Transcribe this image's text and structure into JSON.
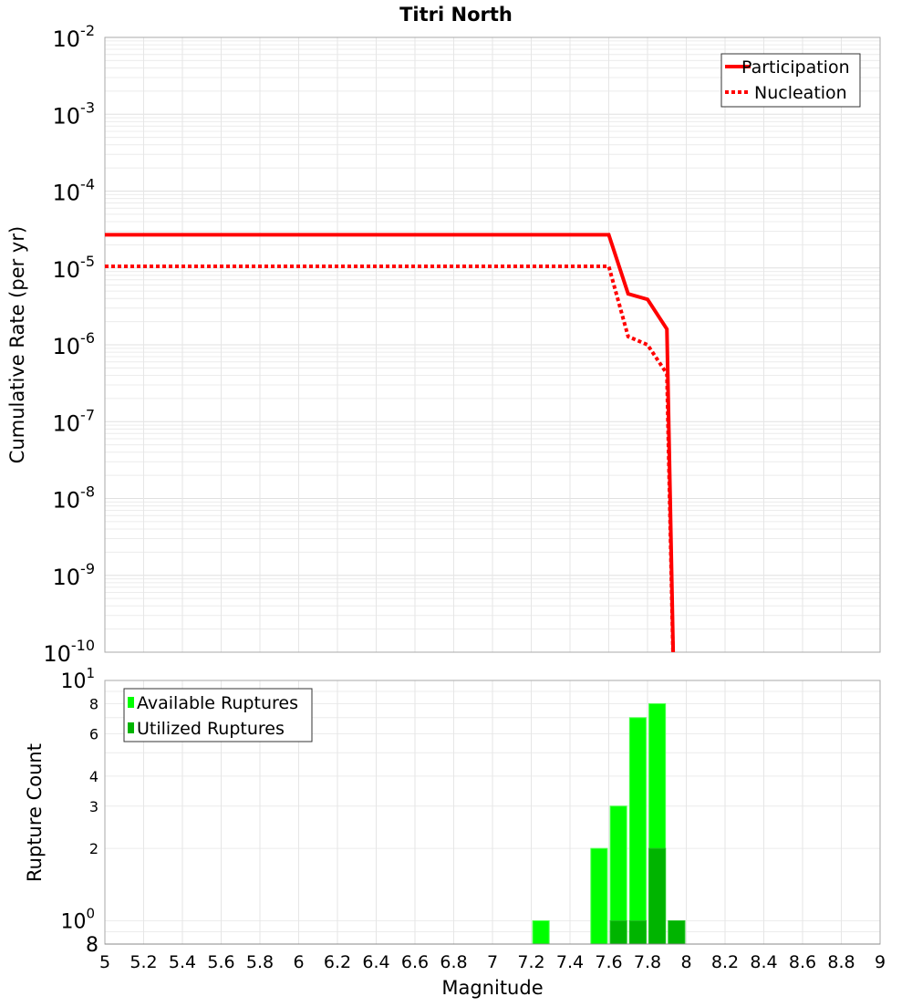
{
  "chart_data": [
    {
      "type": "line",
      "title": "Titri North",
      "xlabel": "",
      "ylabel": "Cumulative Rate (per yr)",
      "yscale": "log",
      "xlim": [
        5,
        9
      ],
      "ylim": [
        1e-10,
        0.01
      ],
      "ytick_exponents": [
        -2,
        -3,
        -4,
        -5,
        -6,
        -7,
        -8,
        -9,
        -10
      ],
      "grid": true,
      "legend_position": "top-right",
      "series": [
        {
          "name": "Participation",
          "style": "solid",
          "color": "#ff0000",
          "x": [
            5.0,
            7.6,
            7.7,
            7.8,
            7.9,
            7.94
          ],
          "y": [
            2.7e-05,
            2.7e-05,
            4.6e-06,
            3.9e-06,
            1.6e-06,
            1e-11
          ]
        },
        {
          "name": "Nucleation",
          "style": "dotted",
          "color": "#ff0000",
          "x": [
            5.0,
            7.6,
            7.7,
            7.8,
            7.9,
            7.94
          ],
          "y": [
            1.05e-05,
            1.05e-05,
            1.28e-06,
            1e-06,
            4.2e-07,
            1e-11
          ]
        }
      ]
    },
    {
      "type": "bar",
      "xlabel": "Magnitude",
      "ylabel": "Rupture Count",
      "yscale": "log",
      "xlim": [
        5,
        9
      ],
      "ylim": [
        0.8,
        10
      ],
      "xticks": [
        "5",
        "5.2",
        "5.4",
        "5.6",
        "5.8",
        "6",
        "6.2",
        "6.4",
        "6.6",
        "6.8",
        "7",
        "7.2",
        "7.4",
        "7.6",
        "7.8",
        "8",
        "8.2",
        "8.4",
        "8.6",
        "8.8",
        "9"
      ],
      "yticks": [
        {
          "value": 10,
          "label": "10",
          "sup": "1"
        },
        {
          "value": 8,
          "label": "8",
          "sup": ""
        },
        {
          "value": 6,
          "label": "6",
          "sup": ""
        },
        {
          "value": 4,
          "label": "4",
          "sup": ""
        },
        {
          "value": 3,
          "label": "3",
          "sup": ""
        },
        {
          "value": 2,
          "label": "2",
          "sup": ""
        },
        {
          "value": 1,
          "label": "10",
          "sup": "0"
        },
        {
          "value": 0.8,
          "label": "8",
          "sup": ""
        }
      ],
      "legend_position": "top-left",
      "bin_centers": [
        7.25,
        7.55,
        7.65,
        7.75,
        7.85,
        7.95
      ],
      "series": [
        {
          "name": "Available Ruptures",
          "color": "#00ff00",
          "values": [
            1,
            2,
            3,
            7,
            8,
            1
          ]
        },
        {
          "name": "Utilized Ruptures",
          "color": "#00b400",
          "values": [
            0,
            0,
            1,
            1,
            2,
            1
          ]
        }
      ]
    }
  ]
}
